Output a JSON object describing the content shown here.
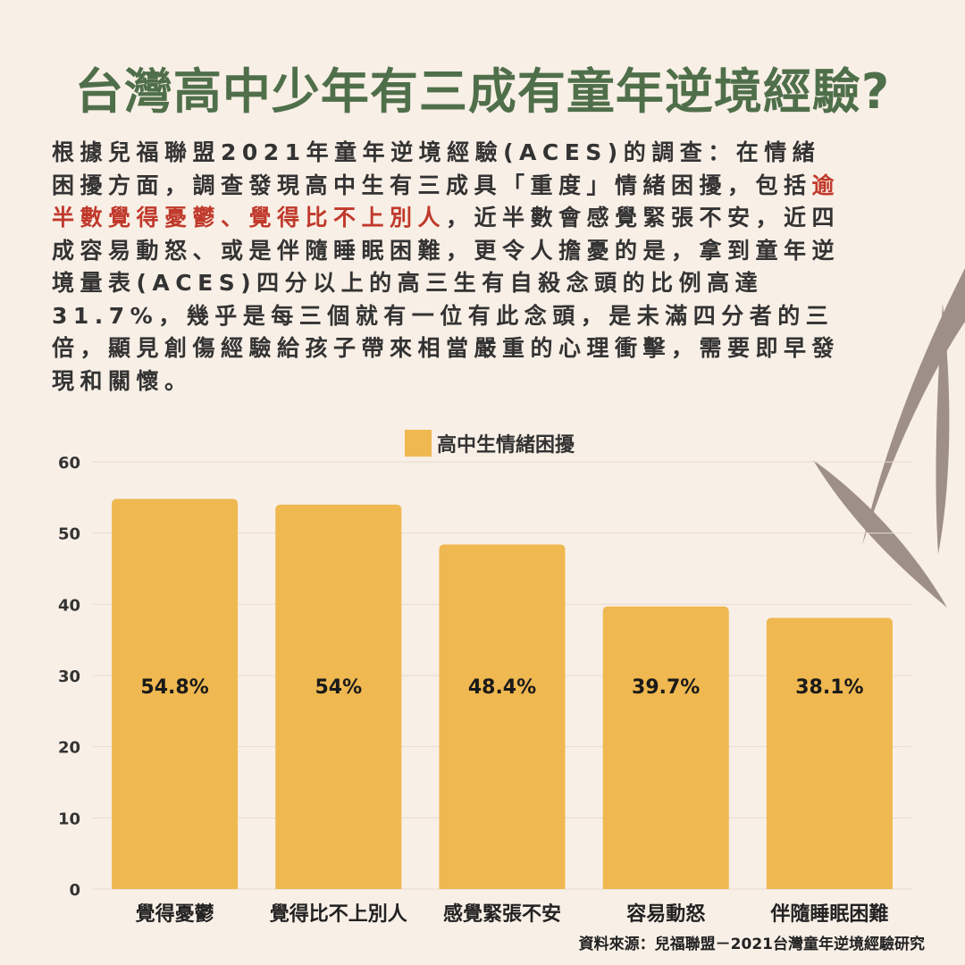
{
  "title": "台灣高中少年有三成有童年逆境經驗?",
  "paragraph": {
    "part1": "根據兒福聯盟2021年童年逆境經驗(ACES)的調查：在情緒困擾方面，調查發現高中生有三成具「重度」情緒困擾，包括",
    "highlight": "逾半數覺得憂鬱、覺得比不上別人",
    "part2": "，近半數會感覺緊張不安，近四成容易動怒、或是伴隨睡眠困難，更令人擔憂的是，拿到童年逆境量表(ACES)四分以上的高三生有自殺念頭的比例高達31.7%，幾乎是每三個就有一位有此念頭，是未滿四分者的三倍，顯見創傷經驗給孩子帶來相當嚴重的心理衝擊，需要即早發現和關懷。"
  },
  "source": "資料來源：兒福聯盟－2021台灣童年逆境經驗研究",
  "colors": {
    "background": "#f8efe6",
    "title": "#4f6f4a",
    "bar": "#efb850",
    "highlight": "#c0392b",
    "grid": "#e6dbd0",
    "leaf": "#9e8f88"
  },
  "chart_data": {
    "type": "bar",
    "categories": [
      "覺得憂鬱",
      "覺得比不上別人",
      "感覺緊張不安",
      "容易動怒",
      "伴隨睡眠困難"
    ],
    "series": [
      {
        "name": "高中生情緒困擾",
        "values": [
          54.8,
          54,
          48.4,
          39.7,
          38.1
        ]
      }
    ],
    "value_labels": [
      "54.8%",
      "54%",
      "48.4%",
      "39.7%",
      "38.1%"
    ],
    "ylim": [
      0,
      60
    ],
    "yticks": [
      0,
      10,
      20,
      30,
      40,
      50,
      60
    ],
    "grid": true,
    "legend": "top-center"
  }
}
